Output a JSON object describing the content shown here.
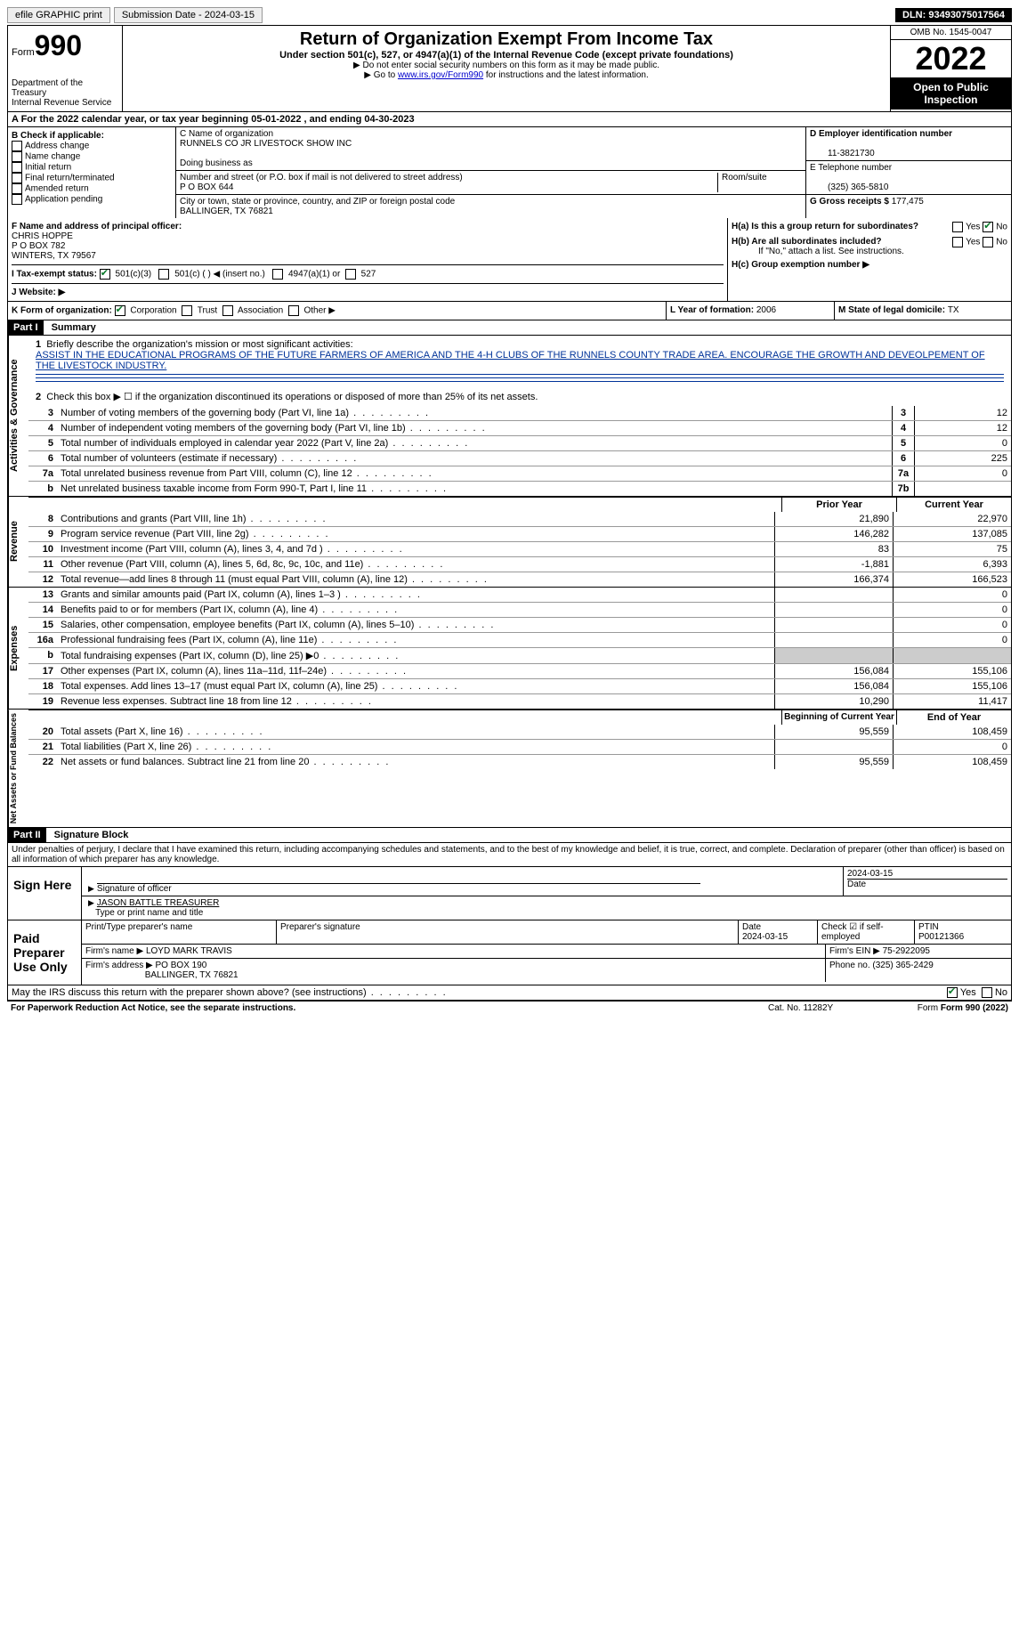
{
  "topbar": {
    "efile": "efile GRAPHIC print",
    "submission_label": "Submission Date - 2024-03-15",
    "dln": "DLN: 93493075017564"
  },
  "header": {
    "form_word": "Form",
    "form_no": "990",
    "dept": "Department of the Treasury",
    "irs": "Internal Revenue Service",
    "title": "Return of Organization Exempt From Income Tax",
    "sub": "Under section 501(c), 527, or 4947(a)(1) of the Internal Revenue Code (except private foundations)",
    "note1": "▶ Do not enter social security numbers on this form as it may be made public.",
    "note2_a": "▶ Go to ",
    "note2_link": "www.irs.gov/Form990",
    "note2_b": " for instructions and the latest information.",
    "omb": "OMB No. 1545-0047",
    "year": "2022",
    "open": "Open to Public Inspection"
  },
  "rowA": {
    "text_a": "A For the 2022 calendar year, or tax year beginning ",
    "begin": "05-01-2022",
    "text_b": " , and ending ",
    "end": "04-30-2023"
  },
  "colB": {
    "hdr": "B Check if applicable:",
    "items": [
      "Address change",
      "Name change",
      "Initial return",
      "Final return/terminated",
      "Amended return",
      "Application pending"
    ]
  },
  "colC": {
    "name_lbl": "C Name of organization",
    "name": "RUNNELS CO JR LIVESTOCK SHOW INC",
    "dba_lbl": "Doing business as",
    "addr_lbl": "Number and street (or P.O. box if mail is not delivered to street address)",
    "room_lbl": "Room/suite",
    "addr": "P O BOX 644",
    "city_lbl": "City or town, state or province, country, and ZIP or foreign postal code",
    "city": "BALLINGER, TX  76821"
  },
  "colD": {
    "ein_lbl": "D Employer identification number",
    "ein": "11-3821730",
    "tel_lbl": "E Telephone number",
    "tel": "(325) 365-5810",
    "gross_lbl": "G Gross receipts $ ",
    "gross": "177,475"
  },
  "rowF": {
    "f_lbl": "F Name and address of principal officer:",
    "f_name": "CHRIS HOPPE",
    "f_addr1": "P O BOX 782",
    "f_addr2": "WINTERS, TX  79567",
    "i_lbl": "I Tax-exempt status:",
    "i_501c3": "501(c)(3)",
    "i_501c": "501(c) (  ) ◀ (insert no.)",
    "i_4947": "4947(a)(1) or",
    "i_527": "527",
    "j_lbl": "J  Website: ▶"
  },
  "rowH": {
    "ha": "H(a)  Is this a group return for subordinates?",
    "hb": "H(b)  Are all subordinates included?",
    "hb_note": "If \"No,\" attach a list. See instructions.",
    "hc": "H(c)  Group exemption number ▶",
    "yes": "Yes",
    "no": "No"
  },
  "rowK": {
    "k": "K Form of organization:",
    "corp": "Corporation",
    "trust": "Trust",
    "assoc": "Association",
    "other": "Other ▶",
    "l": "L Year of formation: ",
    "l_val": "2006",
    "m": "M State of legal domicile: ",
    "m_val": "TX"
  },
  "part1": {
    "hdr": "Part I",
    "title": "Summary",
    "mission_lbl": "Briefly describe the organization's mission or most significant activities:",
    "mission": "ASSIST IN THE EDUCATIONAL PROGRAMS OF THE FUTURE FARMERS OF AMERICA AND THE 4-H CLUBS OF THE RUNNELS COUNTY TRADE AREA. ENCOURAGE THE GROWTH AND DEVEOLPEMENT OF THE LIVESTOCK INDUSTRY.",
    "line2": "Check this box ▶ ☐ if the organization discontinued its operations or disposed of more than 25% of its net assets."
  },
  "sides": {
    "gov": "Activities & Governance",
    "rev": "Revenue",
    "exp": "Expenses",
    "net": "Net Assets or Fund Balances"
  },
  "govLines": [
    {
      "n": "3",
      "t": "Number of voting members of the governing body (Part VI, line 1a)",
      "b": "3",
      "v": "12"
    },
    {
      "n": "4",
      "t": "Number of independent voting members of the governing body (Part VI, line 1b)",
      "b": "4",
      "v": "12"
    },
    {
      "n": "5",
      "t": "Total number of individuals employed in calendar year 2022 (Part V, line 2a)",
      "b": "5",
      "v": "0"
    },
    {
      "n": "6",
      "t": "Total number of volunteers (estimate if necessary)",
      "b": "6",
      "v": "225"
    },
    {
      "n": "7a",
      "t": "Total unrelated business revenue from Part VIII, column (C), line 12",
      "b": "7a",
      "v": "0"
    },
    {
      "n": "b",
      "t": "Net unrelated business taxable income from Form 990-T, Part I, line 11",
      "b": "7b",
      "v": ""
    }
  ],
  "revHdr": {
    "prior": "Prior Year",
    "curr": "Current Year"
  },
  "revLines": [
    {
      "n": "8",
      "t": "Contributions and grants (Part VIII, line 1h)",
      "p": "21,890",
      "c": "22,970"
    },
    {
      "n": "9",
      "t": "Program service revenue (Part VIII, line 2g)",
      "p": "146,282",
      "c": "137,085"
    },
    {
      "n": "10",
      "t": "Investment income (Part VIII, column (A), lines 3, 4, and 7d )",
      "p": "83",
      "c": "75"
    },
    {
      "n": "11",
      "t": "Other revenue (Part VIII, column (A), lines 5, 6d, 8c, 9c, 10c, and 11e)",
      "p": "-1,881",
      "c": "6,393"
    },
    {
      "n": "12",
      "t": "Total revenue—add lines 8 through 11 (must equal Part VIII, column (A), line 12)",
      "p": "166,374",
      "c": "166,523"
    }
  ],
  "expLines": [
    {
      "n": "13",
      "t": "Grants and similar amounts paid (Part IX, column (A), lines 1–3 )",
      "p": "",
      "c": "0"
    },
    {
      "n": "14",
      "t": "Benefits paid to or for members (Part IX, column (A), line 4)",
      "p": "",
      "c": "0"
    },
    {
      "n": "15",
      "t": "Salaries, other compensation, employee benefits (Part IX, column (A), lines 5–10)",
      "p": "",
      "c": "0"
    },
    {
      "n": "16a",
      "t": "Professional fundraising fees (Part IX, column (A), line 11e)",
      "p": "",
      "c": "0"
    },
    {
      "n": "b",
      "t": "Total fundraising expenses (Part IX, column (D), line 25) ▶0",
      "p": "shade",
      "c": "shade"
    },
    {
      "n": "17",
      "t": "Other expenses (Part IX, column (A), lines 11a–11d, 11f–24e)",
      "p": "156,084",
      "c": "155,106"
    },
    {
      "n": "18",
      "t": "Total expenses. Add lines 13–17 (must equal Part IX, column (A), line 25)",
      "p": "156,084",
      "c": "155,106"
    },
    {
      "n": "19",
      "t": "Revenue less expenses. Subtract line 18 from line 12",
      "p": "10,290",
      "c": "11,417"
    }
  ],
  "netHdr": {
    "begin": "Beginning of Current Year",
    "end": "End of Year"
  },
  "netLines": [
    {
      "n": "20",
      "t": "Total assets (Part X, line 16)",
      "p": "95,559",
      "c": "108,459"
    },
    {
      "n": "21",
      "t": "Total liabilities (Part X, line 26)",
      "p": "",
      "c": "0"
    },
    {
      "n": "22",
      "t": "Net assets or fund balances. Subtract line 21 from line 20",
      "p": "95,559",
      "c": "108,459"
    }
  ],
  "part2": {
    "hdr": "Part II",
    "title": "Signature Block",
    "decl": "Under penalties of perjury, I declare that I have examined this return, including accompanying schedules and statements, and to the best of my knowledge and belief, it is true, correct, and complete. Declaration of preparer (other than officer) is based on all information of which preparer has any knowledge."
  },
  "sign": {
    "here": "Sign Here",
    "sig_lbl": "Signature of officer",
    "date": "2024-03-15",
    "date_lbl": "Date",
    "name": "JASON BATTLE TREASURER",
    "name_lbl": "Type or print name and title"
  },
  "paid": {
    "hdr": "Paid Preparer Use Only",
    "print_lbl": "Print/Type preparer's name",
    "sig_lbl": "Preparer's signature",
    "date_lbl": "Date",
    "date": "2024-03-15",
    "check_lbl": "Check ☑ if self-employed",
    "ptin_lbl": "PTIN",
    "ptin": "P00121366",
    "firm_lbl": "Firm's name   ▶ ",
    "firm": "LOYD MARK TRAVIS",
    "ein_lbl": "Firm's EIN ▶ ",
    "ein": "75-2922095",
    "addr_lbl": "Firm's address ▶ ",
    "addr1": "PO BOX 190",
    "addr2": "BALLINGER, TX  76821",
    "phone_lbl": "Phone no. ",
    "phone": "(325) 365-2429"
  },
  "discuss": {
    "q": "May the IRS discuss this return with the preparer shown above? (see instructions)",
    "yes": "Yes",
    "no": "No"
  },
  "footer": {
    "pra": "For Paperwork Reduction Act Notice, see the separate instructions.",
    "cat": "Cat. No. 11282Y",
    "form": "Form 990 (2022)"
  }
}
